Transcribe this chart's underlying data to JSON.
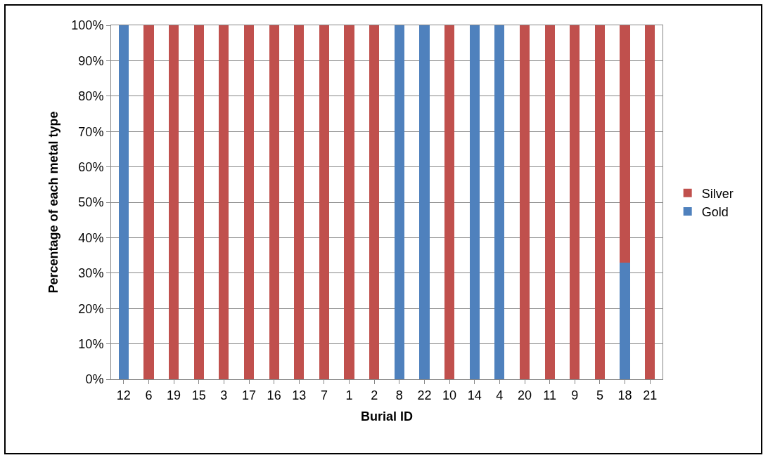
{
  "chart_data": {
    "type": "bar",
    "stacked": true,
    "xlabel": "Burial ID",
    "ylabel": "Percentage of each metal type",
    "categories": [
      "12",
      "6",
      "19",
      "15",
      "3",
      "17",
      "16",
      "13",
      "7",
      "1",
      "2",
      "8",
      "22",
      "10",
      "14",
      "4",
      "20",
      "11",
      "9",
      "5",
      "18",
      "21"
    ],
    "series": [
      {
        "name": "Gold",
        "color": "#4f81bd",
        "values": [
          100,
          0,
          0,
          0,
          0,
          0,
          0,
          0,
          0,
          0,
          0,
          100,
          100,
          0,
          100,
          100,
          0,
          0,
          0,
          0,
          33,
          0
        ]
      },
      {
        "name": "Silver",
        "color": "#c0504d",
        "values": [
          0,
          100,
          100,
          100,
          100,
          100,
          100,
          100,
          100,
          100,
          100,
          0,
          0,
          100,
          0,
          0,
          100,
          100,
          100,
          100,
          67,
          100
        ]
      }
    ],
    "ylim": [
      0,
      100
    ],
    "yticks": [
      {
        "value": 0,
        "label": "0%"
      },
      {
        "value": 10,
        "label": "10%"
      },
      {
        "value": 20,
        "label": "20%"
      },
      {
        "value": 30,
        "label": "30%"
      },
      {
        "value": 40,
        "label": "40%"
      },
      {
        "value": 50,
        "label": "50%"
      },
      {
        "value": 60,
        "label": "60%"
      },
      {
        "value": 70,
        "label": "70%"
      },
      {
        "value": 80,
        "label": "80%"
      },
      {
        "value": 90,
        "label": "90%"
      },
      {
        "value": 100,
        "label": "100%"
      }
    ],
    "grid": "y",
    "legend": "right"
  }
}
